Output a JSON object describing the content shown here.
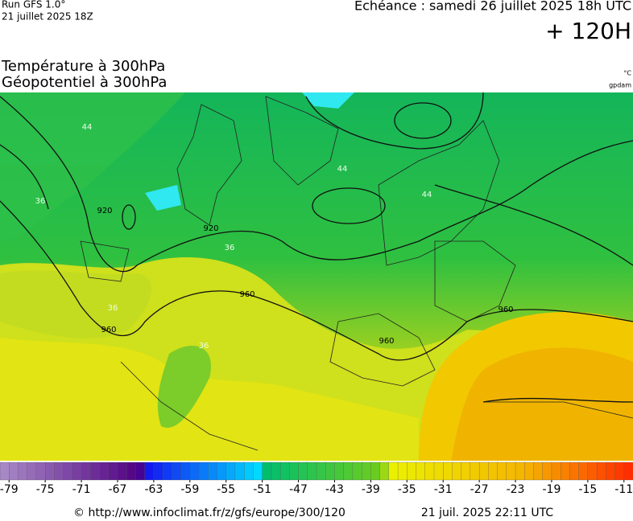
{
  "header": {
    "run": "Run GFS 1.0°",
    "run_date": "21 juillet 2025 18Z",
    "forecast": "Echéance : samedi 26 juillet 2025 18h UTC",
    "lead": "+ 120H"
  },
  "titles": {
    "line1": "Température à 300hPa",
    "line2": "Géopotentiel à 300hPa",
    "unit_temp": "°C",
    "unit_geo": "gpdam"
  },
  "map": {
    "contour_labels": [
      "920",
      "920",
      "960",
      "960",
      "960",
      "960",
      "44",
      "44",
      "44",
      "36",
      "36",
      "36",
      "36"
    ]
  },
  "colorbar": {
    "lim": [
      -80,
      -10
    ],
    "ticks": [
      -79,
      -75,
      -71,
      -67,
      -63,
      -59,
      -55,
      -51,
      -47,
      -43,
      -39,
      -35,
      -31,
      -27,
      -23,
      -19,
      -15,
      -11
    ]
  },
  "footer": {
    "url": "© http://www.infoclimat.fr/z/gfs/europe/300/120",
    "generated": "21 juil. 2025 22:11 UTC"
  }
}
